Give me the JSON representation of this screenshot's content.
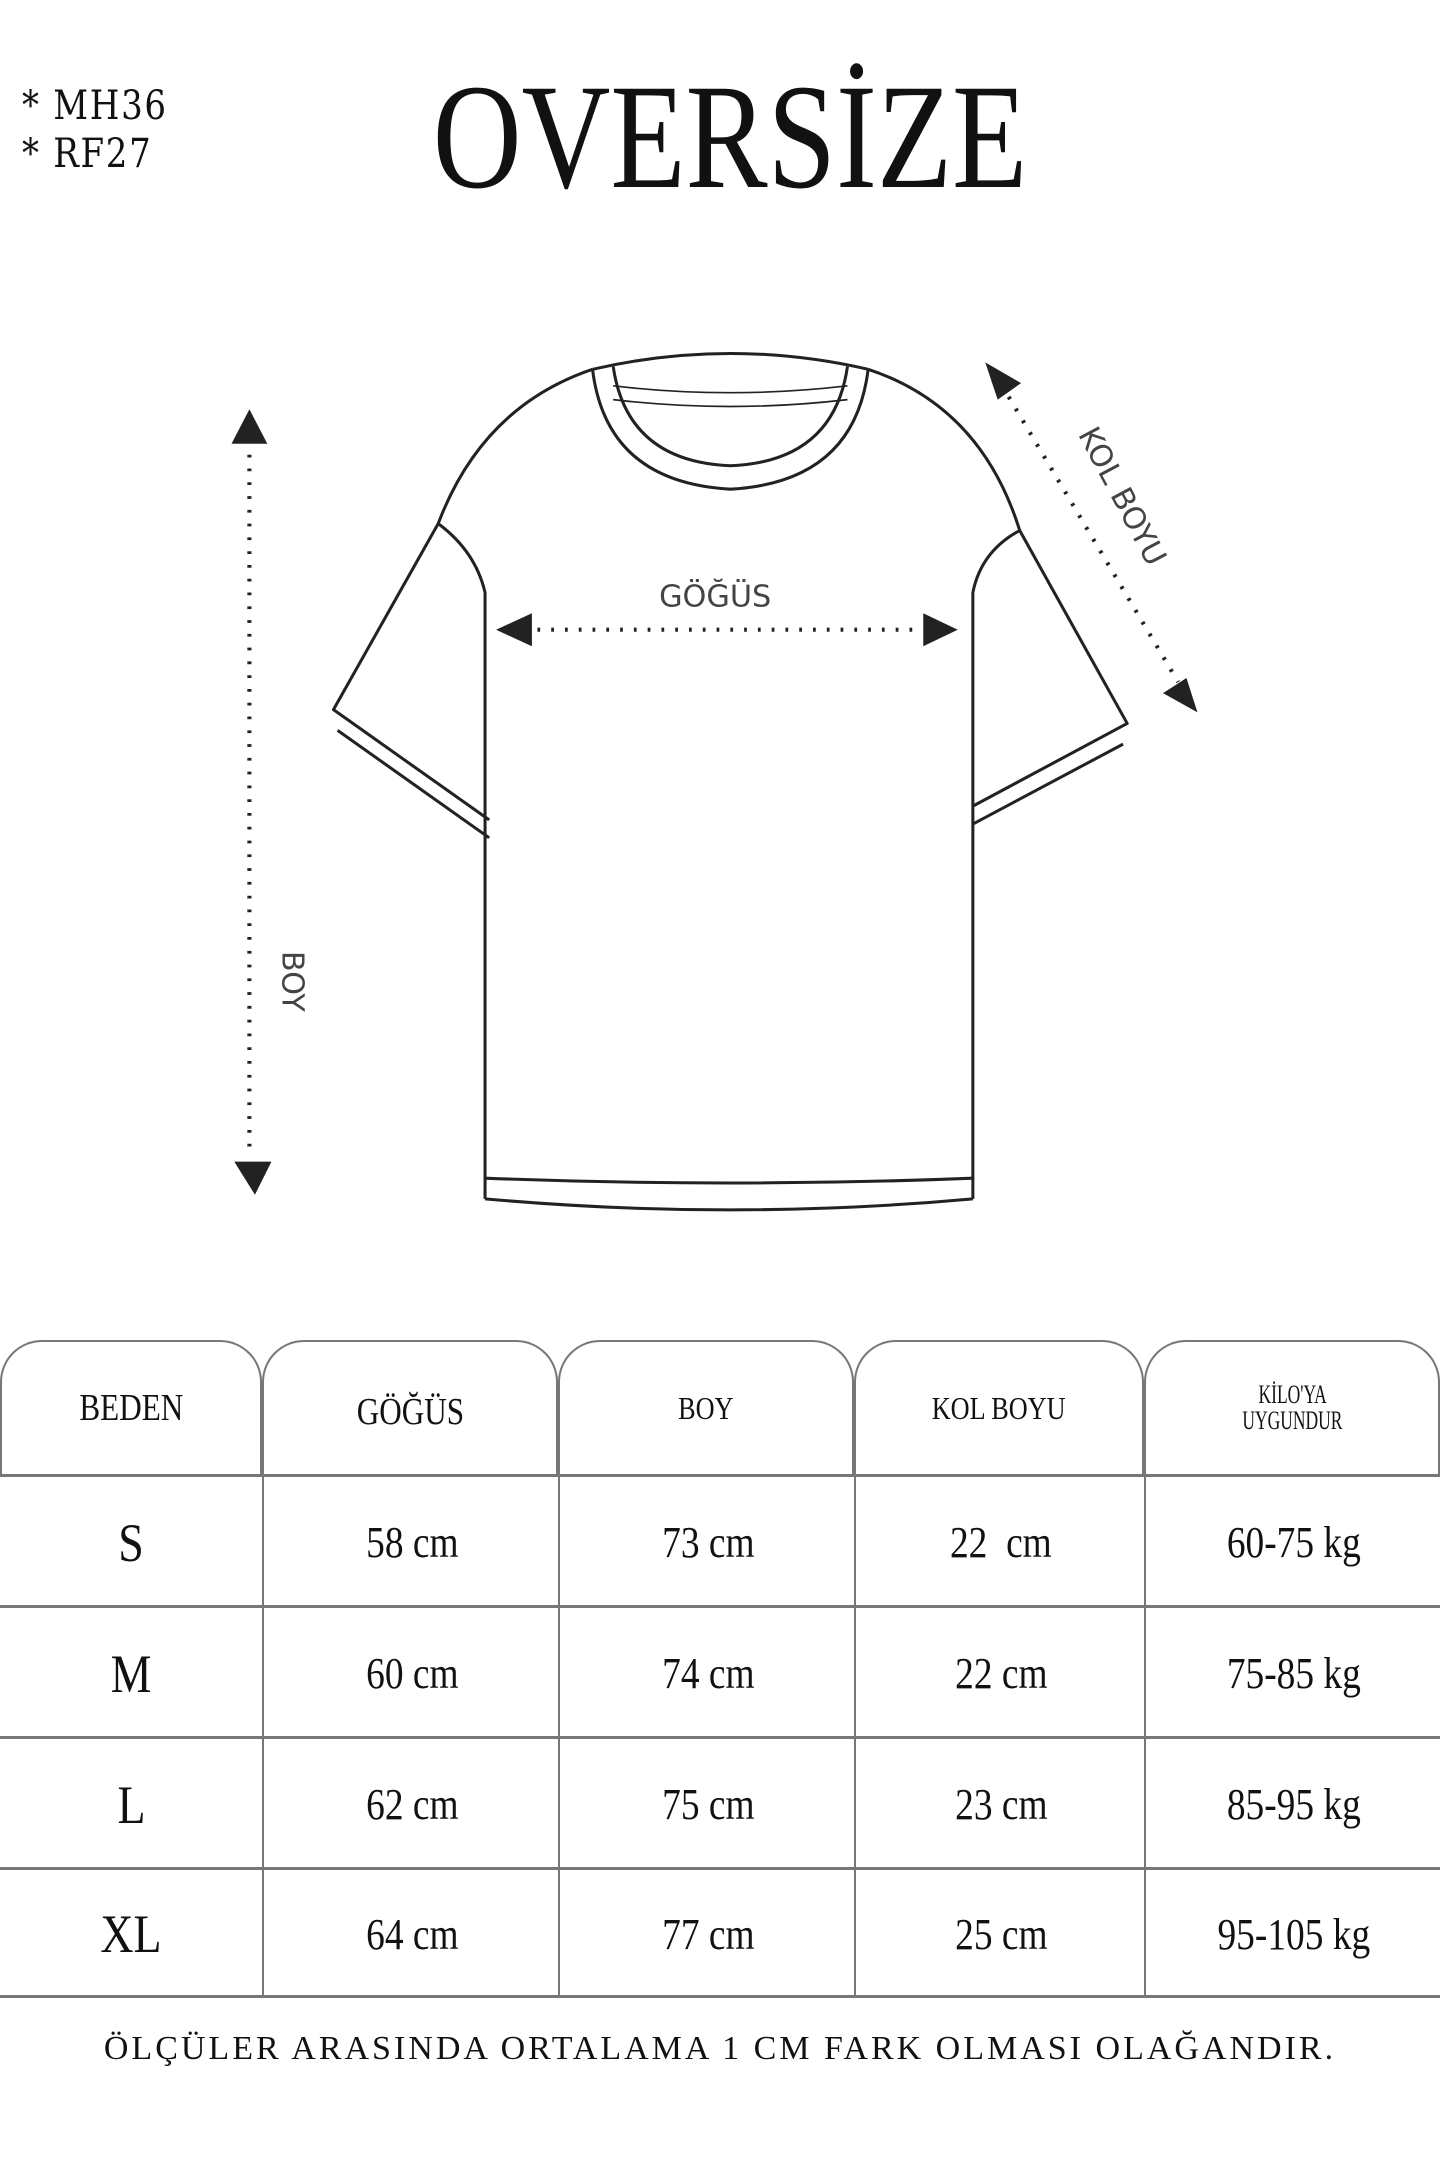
{
  "codes": [
    "* MH36",
    "* RF27"
  ],
  "title": "OVERSİZE",
  "diagram_labels": {
    "chest": "GÖĞÜS",
    "length": "BOY",
    "sleeve": "KOL BOYU"
  },
  "table": {
    "headers": [
      "BEDEN",
      "GÖĞÜS",
      "BOY",
      "KOL BOYU",
      "KİLO'YA UYGUNDUR"
    ],
    "header_lines_last": [
      "KİLO'YA",
      "UYGUNDUR"
    ],
    "rows": [
      [
        "S",
        "58 cm",
        "73 cm",
        "22  cm",
        "60-75 kg"
      ],
      [
        "M",
        "60 cm",
        "74 cm",
        "22 cm",
        "75-85 kg"
      ],
      [
        "L",
        "62 cm",
        "75 cm",
        "23 cm",
        "85-95 kg"
      ],
      [
        "XL",
        "64 cm",
        "77 cm",
        "25 cm",
        "95-105 kg"
      ]
    ]
  },
  "footer": "ÖLÇÜLER ARASINDA ORTALAMA 1 CM FARK OLMASI OLAĞANDIR."
}
